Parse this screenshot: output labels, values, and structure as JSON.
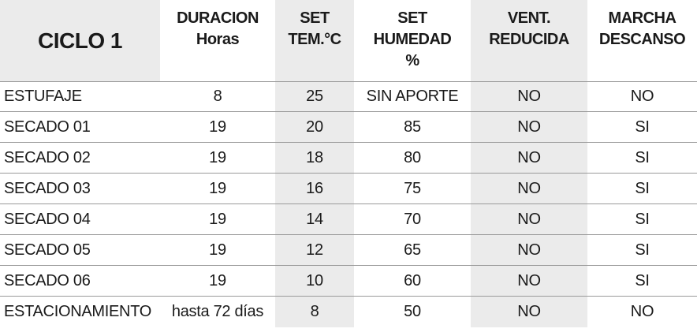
{
  "table": {
    "title": "CICLO 1",
    "headers": [
      {
        "lines": [
          "DURACION",
          "Horas"
        ]
      },
      {
        "lines": [
          "SET",
          "TEM.°C"
        ]
      },
      {
        "lines": [
          "SET",
          "HUMEDAD",
          "%"
        ]
      },
      {
        "lines": [
          "VENT.",
          "REDUCIDA"
        ]
      },
      {
        "lines": [
          "MARCHA",
          "DESCANSO"
        ]
      }
    ],
    "rows": [
      {
        "name": "ESTUFAJE",
        "duracion": "8",
        "temp": "25",
        "humedad": "SIN APORTE",
        "vent": "NO",
        "marcha": "NO"
      },
      {
        "name": "SECADO 01",
        "duracion": "19",
        "temp": "20",
        "humedad": "85",
        "vent": "NO",
        "marcha": "SI"
      },
      {
        "name": "SECADO 02",
        "duracion": "19",
        "temp": "18",
        "humedad": "80",
        "vent": "NO",
        "marcha": "SI"
      },
      {
        "name": "SECADO 03",
        "duracion": "19",
        "temp": "16",
        "humedad": "75",
        "vent": "NO",
        "marcha": "SI"
      },
      {
        "name": "SECADO 04",
        "duracion": "19",
        "temp": "14",
        "humedad": "70",
        "vent": "NO",
        "marcha": "SI"
      },
      {
        "name": "SECADO 05",
        "duracion": "19",
        "temp": "12",
        "humedad": "65",
        "vent": "NO",
        "marcha": "SI"
      },
      {
        "name": "SECADO 06",
        "duracion": "19",
        "temp": "10",
        "humedad": "60",
        "vent": "NO",
        "marcha": "SI"
      },
      {
        "name": "ESTACIONAMIENTO",
        "duracion": "hasta 72 días",
        "temp": "8",
        "humedad": "50",
        "vent": "NO",
        "marcha": "NO"
      }
    ],
    "colors": {
      "header_shade": "#ebebeb",
      "column_shade": "#ebebeb",
      "rule": "#9a9a9a",
      "text": "#1a1a1a"
    }
  }
}
